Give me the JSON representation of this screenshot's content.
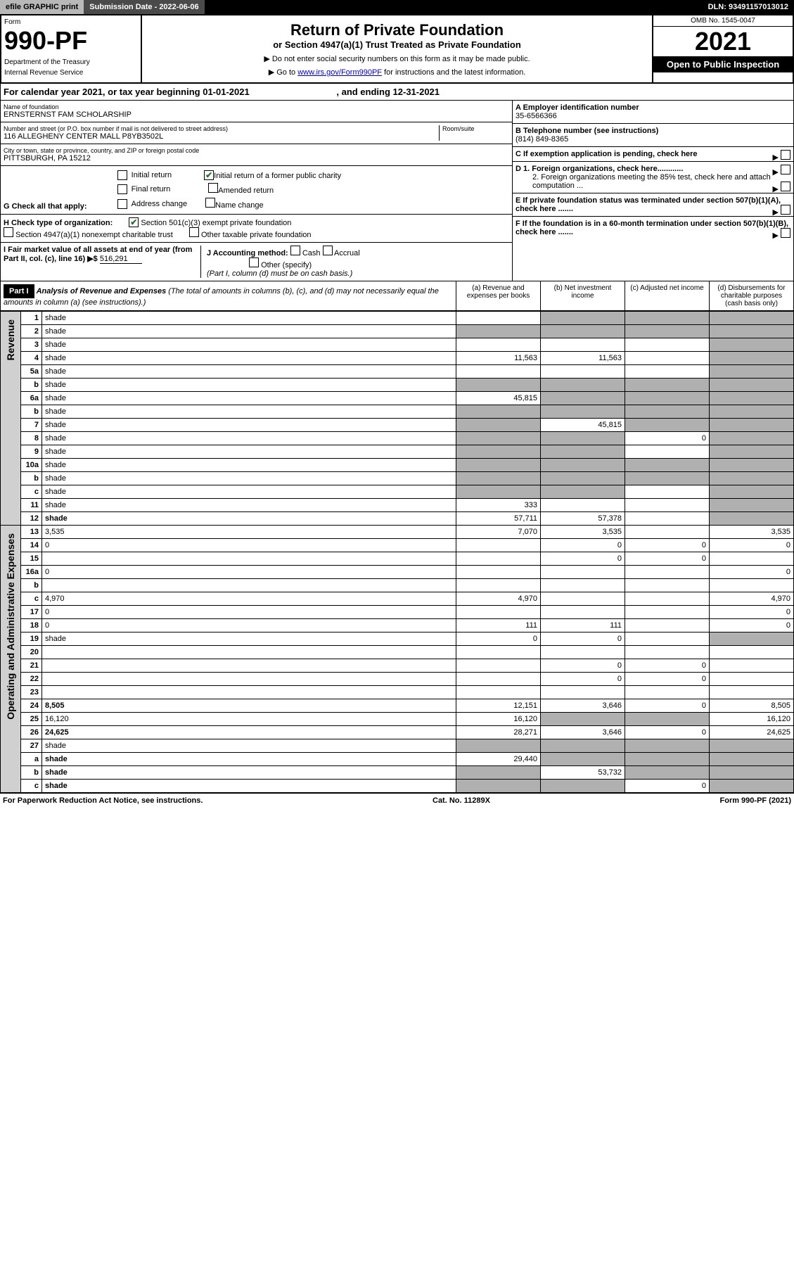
{
  "topbar": {
    "efile": "efile GRAPHIC print",
    "submission": "Submission Date - 2022-06-06",
    "dln": "DLN: 93491157013012"
  },
  "header": {
    "form_label": "Form",
    "form_num": "990-PF",
    "dept": "Department of the Treasury",
    "irs": "Internal Revenue Service",
    "title": "Return of Private Foundation",
    "subtitle": "or Section 4947(a)(1) Trust Treated as Private Foundation",
    "note1": "▶ Do not enter social security numbers on this form as it may be made public.",
    "note2_pre": "▶ Go to ",
    "note2_link": "www.irs.gov/Form990PF",
    "note2_post": " for instructions and the latest information.",
    "omb": "OMB No. 1545-0047",
    "year": "2021",
    "open": "Open to Public Inspection"
  },
  "calyear": {
    "text": "For calendar year 2021, or tax year beginning 01-01-2021",
    "ending": ", and ending 12-31-2021"
  },
  "id": {
    "name_lbl": "Name of foundation",
    "name": "ERNSTERNST FAM SCHOLARSHIP",
    "addr_lbl": "Number and street (or P.O. box number if mail is not delivered to street address)",
    "addr": "116 ALLEGHENY CENTER MALL P8YB3502L",
    "room_lbl": "Room/suite",
    "city_lbl": "City or town, state or province, country, and ZIP or foreign postal code",
    "city": "PITTSBURGH, PA  15212",
    "ein_lbl": "A Employer identification number",
    "ein": "35-6566366",
    "tel_lbl": "B Telephone number (see instructions)",
    "tel": "(814) 849-8365",
    "c_lbl": "C If exemption application is pending, check here",
    "d1": "D 1. Foreign organizations, check here............",
    "d2": "2. Foreign organizations meeting the 85% test, check here and attach computation ...",
    "e_lbl": "E If private foundation status was terminated under section 507(b)(1)(A), check here .......",
    "f_lbl": "F If the foundation is in a 60-month termination under section 507(b)(1)(B), check here .......",
    "g_lbl": "G Check all that apply:",
    "g_opts": [
      "Initial return",
      "Initial return of a former public charity",
      "Final return",
      "Amended return",
      "Address change",
      "Name change"
    ],
    "h_lbl": "H Check type of organization:",
    "h1": "Section 501(c)(3) exempt private foundation",
    "h2": "Section 4947(a)(1) nonexempt charitable trust",
    "h3": "Other taxable private foundation",
    "i_lbl": "I Fair market value of all assets at end of year (from Part II, col. (c), line 16) ▶$",
    "i_val": "516,291",
    "j_lbl": "J Accounting method:",
    "j_cash": "Cash",
    "j_acc": "Accrual",
    "j_other": "Other (specify)",
    "j_note": "(Part I, column (d) must be on cash basis.)"
  },
  "part1": {
    "label": "Part I",
    "title": "Analysis of Revenue and Expenses",
    "title_note": " (The total of amounts in columns (b), (c), and (d) may not necessarily equal the amounts in column (a) (see instructions).)",
    "cols": {
      "a": "(a) Revenue and expenses per books",
      "b": "(b) Net investment income",
      "c": "(c) Adjusted net income",
      "d": "(d) Disbursements for charitable purposes (cash basis only)"
    }
  },
  "vert": {
    "revenue": "Revenue",
    "opex": "Operating and Administrative Expenses"
  },
  "rows": [
    {
      "n": "1",
      "d": "shade",
      "a": "",
      "b": "shade",
      "c": "shade"
    },
    {
      "n": "2",
      "d": "shade",
      "a": "shade",
      "b": "shade",
      "c": "shade"
    },
    {
      "n": "3",
      "d": "shade",
      "a": "",
      "b": "",
      "c": ""
    },
    {
      "n": "4",
      "d": "shade",
      "a": "11,563",
      "b": "11,563",
      "c": ""
    },
    {
      "n": "5a",
      "d": "shade",
      "a": "",
      "b": "",
      "c": ""
    },
    {
      "n": "b",
      "d": "shade",
      "a": "shade",
      "b": "shade",
      "c": "shade"
    },
    {
      "n": "6a",
      "d": "shade",
      "a": "45,815",
      "b": "shade",
      "c": "shade"
    },
    {
      "n": "b",
      "d": "shade",
      "a": "shade",
      "b": "shade",
      "c": "shade"
    },
    {
      "n": "7",
      "d": "shade",
      "a": "shade",
      "b": "45,815",
      "c": "shade"
    },
    {
      "n": "8",
      "d": "shade",
      "a": "shade",
      "b": "shade",
      "c": "0"
    },
    {
      "n": "9",
      "d": "shade",
      "a": "shade",
      "b": "shade",
      "c": ""
    },
    {
      "n": "10a",
      "d": "shade",
      "a": "shade",
      "b": "shade",
      "c": "shade"
    },
    {
      "n": "b",
      "d": "shade",
      "a": "shade",
      "b": "shade",
      "c": "shade"
    },
    {
      "n": "c",
      "d": "shade",
      "a": "shade",
      "b": "shade",
      "c": ""
    },
    {
      "n": "11",
      "d": "shade",
      "a": "333",
      "b": "",
      "c": ""
    },
    {
      "n": "12",
      "d": "shade",
      "a": "57,711",
      "b": "57,378",
      "c": "",
      "bold": true
    },
    {
      "n": "13",
      "d": "3,535",
      "a": "7,070",
      "b": "3,535",
      "c": ""
    },
    {
      "n": "14",
      "d": "0",
      "a": "",
      "b": "0",
      "c": "0"
    },
    {
      "n": "15",
      "d": "",
      "a": "",
      "b": "0",
      "c": "0"
    },
    {
      "n": "16a",
      "d": "0",
      "a": "",
      "b": "",
      "c": ""
    },
    {
      "n": "b",
      "d": "",
      "a": "",
      "b": "",
      "c": ""
    },
    {
      "n": "c",
      "d": "4,970",
      "a": "4,970",
      "b": "",
      "c": ""
    },
    {
      "n": "17",
      "d": "0",
      "a": "",
      "b": "",
      "c": ""
    },
    {
      "n": "18",
      "d": "0",
      "a": "111",
      "b": "111",
      "c": ""
    },
    {
      "n": "19",
      "d": "shade",
      "a": "0",
      "b": "0",
      "c": ""
    },
    {
      "n": "20",
      "d": "",
      "a": "",
      "b": "",
      "c": ""
    },
    {
      "n": "21",
      "d": "",
      "a": "",
      "b": "0",
      "c": "0"
    },
    {
      "n": "22",
      "d": "",
      "a": "",
      "b": "0",
      "c": "0"
    },
    {
      "n": "23",
      "d": "",
      "a": "",
      "b": "",
      "c": ""
    },
    {
      "n": "24",
      "d": "8,505",
      "a": "12,151",
      "b": "3,646",
      "c": "0",
      "bold": true
    },
    {
      "n": "25",
      "d": "16,120",
      "a": "16,120",
      "b": "shade",
      "c": "shade"
    },
    {
      "n": "26",
      "d": "24,625",
      "a": "28,271",
      "b": "3,646",
      "c": "0",
      "bold": true
    },
    {
      "n": "27",
      "d": "shade",
      "a": "shade",
      "b": "shade",
      "c": "shade"
    },
    {
      "n": "a",
      "d": "shade",
      "a": "29,440",
      "b": "shade",
      "c": "shade",
      "bold": true
    },
    {
      "n": "b",
      "d": "shade",
      "a": "shade",
      "b": "53,732",
      "c": "shade",
      "bold": true
    },
    {
      "n": "c",
      "d": "shade",
      "a": "shade",
      "b": "shade",
      "c": "0",
      "bold": true
    }
  ],
  "footer": {
    "left": "For Paperwork Reduction Act Notice, see instructions.",
    "mid": "Cat. No. 11289X",
    "right": "Form 990-PF (2021)"
  }
}
